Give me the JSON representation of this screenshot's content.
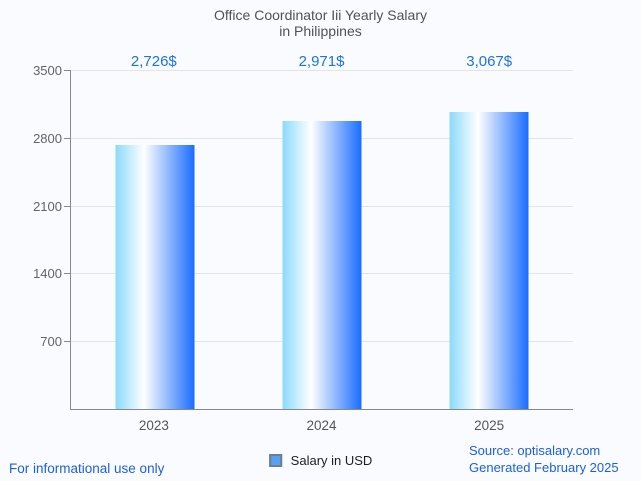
{
  "title": {
    "line1": "Office Coordinator Iii Yearly Salary",
    "line2": "in Philippines"
  },
  "chart_data": {
    "type": "bar",
    "title": "Office Coordinator Iii Yearly Salary in Philippines",
    "categories": [
      "2023",
      "2024",
      "2025"
    ],
    "values": [
      2726,
      2971,
      3067
    ],
    "value_labels": [
      "2,726$",
      "2,971$",
      "3,067$"
    ],
    "series": [
      {
        "name": "Salary in USD",
        "values": [
          2726,
          2971,
          3067
        ]
      }
    ],
    "xlabel": "",
    "ylabel": "",
    "ylim": [
      0,
      3500
    ],
    "yticks": [
      3500,
      2800,
      2100,
      1400,
      700
    ],
    "grid": true,
    "legend_position": "bottom",
    "bar_gradient": [
      "#8cdafc",
      "#ffffff",
      "#1a6dff"
    ]
  },
  "legend": {
    "label": "Salary in USD",
    "marker_fill": "#5a9ff5",
    "marker_border": "#6e7f8c"
  },
  "footer": {
    "left": "For informational use only",
    "source": "Source: optisalary.com",
    "generated": "Generated February 2025"
  },
  "colors": {
    "background": "#fafbfe",
    "title_text": "#525256",
    "value_label_text": "#1a73e8",
    "axis_line": "#85898c",
    "gridline": "#e2e4e8",
    "tick_text": "#646467",
    "footer_text": "#1c5fe0"
  }
}
